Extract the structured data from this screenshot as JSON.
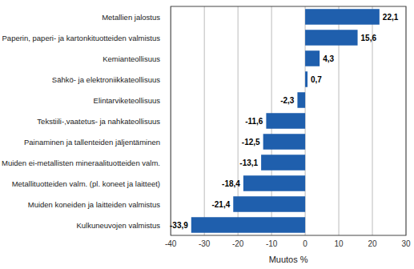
{
  "chart_data": {
    "type": "bar",
    "orientation": "horizontal",
    "categories": [
      "Kulkuneuvojen valmistus",
      "Muiden koneiden ja laitteiden valmistus",
      "Metallituotteiden valm. (pl. koneet ja laitteet)",
      "Muiden ei-metallisten mineraalituotteiden valm.",
      "Painaminen ja tallenteiden jäljentäminen",
      "Tekstiili-,vaatetus- ja nahkateollisuus",
      "Elintarviketeollisuus",
      "Sähkö- ja elektroniikkateollisuus",
      "Kemianteollisuus",
      "Paperin, paperi- ja kartonkituotteiden valmistus",
      "Metallien jalostus"
    ],
    "values": [
      -33.9,
      -21.4,
      -18.4,
      -13.1,
      -12.5,
      -11.6,
      -2.3,
      0.7,
      4.3,
      15.6,
      22.1
    ],
    "value_labels": [
      "-33,9",
      "-21,4",
      "-18,4",
      "-13,1",
      "-12,5",
      "-11,6",
      "-2,3",
      "0,7",
      "4,3",
      "15,6",
      "22,1"
    ],
    "data_labels": true,
    "color": "#1F5FAD",
    "xlabel": "Muutos %",
    "xlim": [
      -40,
      30
    ],
    "xticks": [
      -40,
      -30,
      -20,
      -10,
      0,
      10,
      20,
      30
    ],
    "grid": true
  }
}
